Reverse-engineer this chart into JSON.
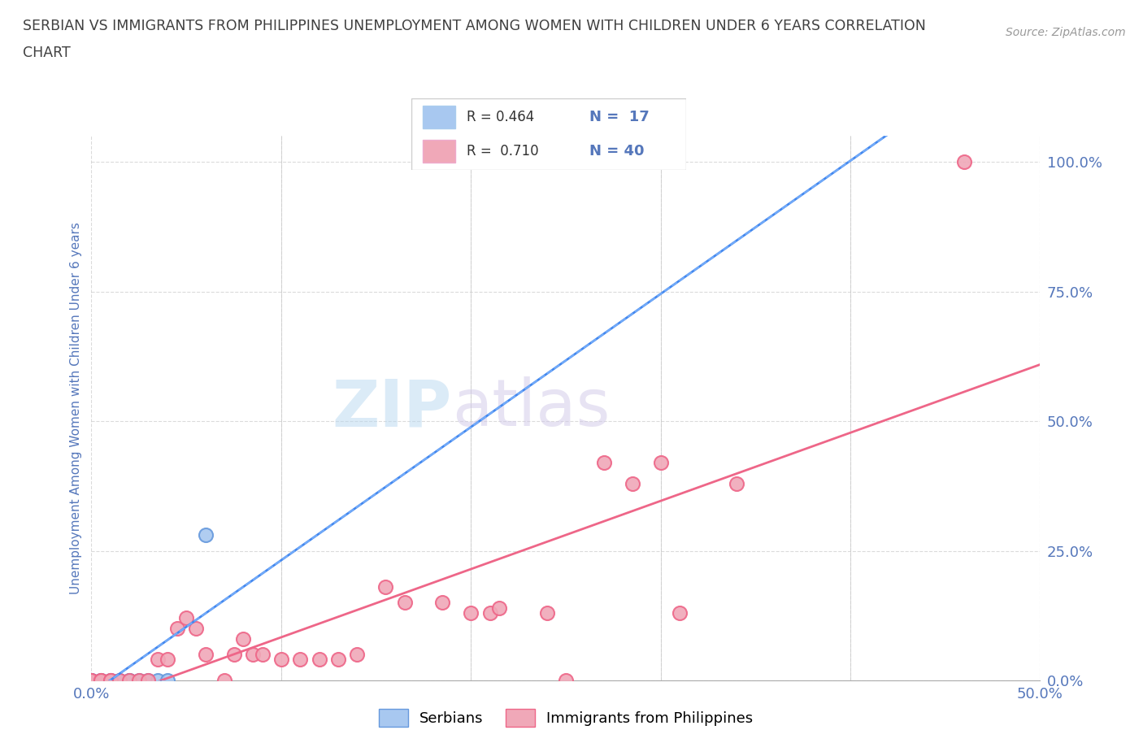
{
  "title_line1": "SERBIAN VS IMMIGRANTS FROM PHILIPPINES UNEMPLOYMENT AMONG WOMEN WITH CHILDREN UNDER 6 YEARS CORRELATION",
  "title_line2": "CHART",
  "source": "Source: ZipAtlas.com",
  "ylabel": "Unemployment Among Women with Children Under 6 years",
  "xlim": [
    0,
    0.5
  ],
  "ylim": [
    0,
    1.05
  ],
  "xtick_positions": [
    0.0,
    0.1,
    0.2,
    0.3,
    0.4,
    0.5
  ],
  "xticklabels": [
    "0.0%",
    "",
    "",
    "",
    "",
    "50.0%"
  ],
  "ytick_positions": [
    0.0,
    0.25,
    0.5,
    0.75,
    1.0
  ],
  "yticklabels": [
    "0.0%",
    "25.0%",
    "50.0%",
    "75.0%",
    "100.0%"
  ],
  "corr_entries": [
    {
      "R": "0.464",
      "N": "17",
      "color": "#a8c8f0"
    },
    {
      "R": "0.710",
      "N": "40",
      "color": "#f0a8b8"
    }
  ],
  "watermark_part1": "ZIP",
  "watermark_part2": "atlas",
  "serbian_points": [
    [
      0.0,
      0.0
    ],
    [
      0.0,
      0.0
    ],
    [
      0.0,
      0.0
    ],
    [
      0.0,
      0.0
    ],
    [
      0.0,
      0.0
    ],
    [
      0.005,
      0.0
    ],
    [
      0.005,
      0.0
    ],
    [
      0.01,
      0.0
    ],
    [
      0.01,
      0.0
    ],
    [
      0.015,
      0.0
    ],
    [
      0.02,
      0.0
    ],
    [
      0.02,
      0.0
    ],
    [
      0.025,
      0.0
    ],
    [
      0.03,
      0.0
    ],
    [
      0.035,
      0.0
    ],
    [
      0.04,
      0.0
    ],
    [
      0.06,
      0.28
    ]
  ],
  "philippines_points": [
    [
      0.0,
      0.0
    ],
    [
      0.0,
      0.0
    ],
    [
      0.005,
      0.0
    ],
    [
      0.005,
      0.0
    ],
    [
      0.01,
      0.0
    ],
    [
      0.01,
      0.0
    ],
    [
      0.015,
      0.0
    ],
    [
      0.02,
      0.0
    ],
    [
      0.025,
      0.0
    ],
    [
      0.03,
      0.0
    ],
    [
      0.035,
      0.04
    ],
    [
      0.04,
      0.04
    ],
    [
      0.045,
      0.1
    ],
    [
      0.05,
      0.12
    ],
    [
      0.055,
      0.1
    ],
    [
      0.06,
      0.05
    ],
    [
      0.07,
      0.0
    ],
    [
      0.075,
      0.05
    ],
    [
      0.08,
      0.08
    ],
    [
      0.085,
      0.05
    ],
    [
      0.09,
      0.05
    ],
    [
      0.1,
      0.04
    ],
    [
      0.11,
      0.04
    ],
    [
      0.12,
      0.04
    ],
    [
      0.13,
      0.04
    ],
    [
      0.14,
      0.05
    ],
    [
      0.155,
      0.18
    ],
    [
      0.165,
      0.15
    ],
    [
      0.185,
      0.15
    ],
    [
      0.2,
      0.13
    ],
    [
      0.21,
      0.13
    ],
    [
      0.215,
      0.14
    ],
    [
      0.24,
      0.13
    ],
    [
      0.25,
      0.0
    ],
    [
      0.27,
      0.42
    ],
    [
      0.285,
      0.38
    ],
    [
      0.3,
      0.42
    ],
    [
      0.31,
      0.13
    ],
    [
      0.34,
      0.38
    ],
    [
      0.46,
      1.0
    ]
  ],
  "serbian_line_color": "#4488ee",
  "serbian_line_style": "-",
  "serbian_dash_color": "#88bbff",
  "philippines_line_color": "#ee6688",
  "serbian_marker_color": "#a8c8f0",
  "serbian_marker_edge": "#6699dd",
  "philippines_marker_color": "#f0a8b8",
  "philippines_marker_edge": "#ee6688",
  "bg_color": "#ffffff",
  "grid_color": "#cccccc",
  "title_color": "#404040",
  "axis_label_color": "#5577bb",
  "tick_color": "#5577bb"
}
